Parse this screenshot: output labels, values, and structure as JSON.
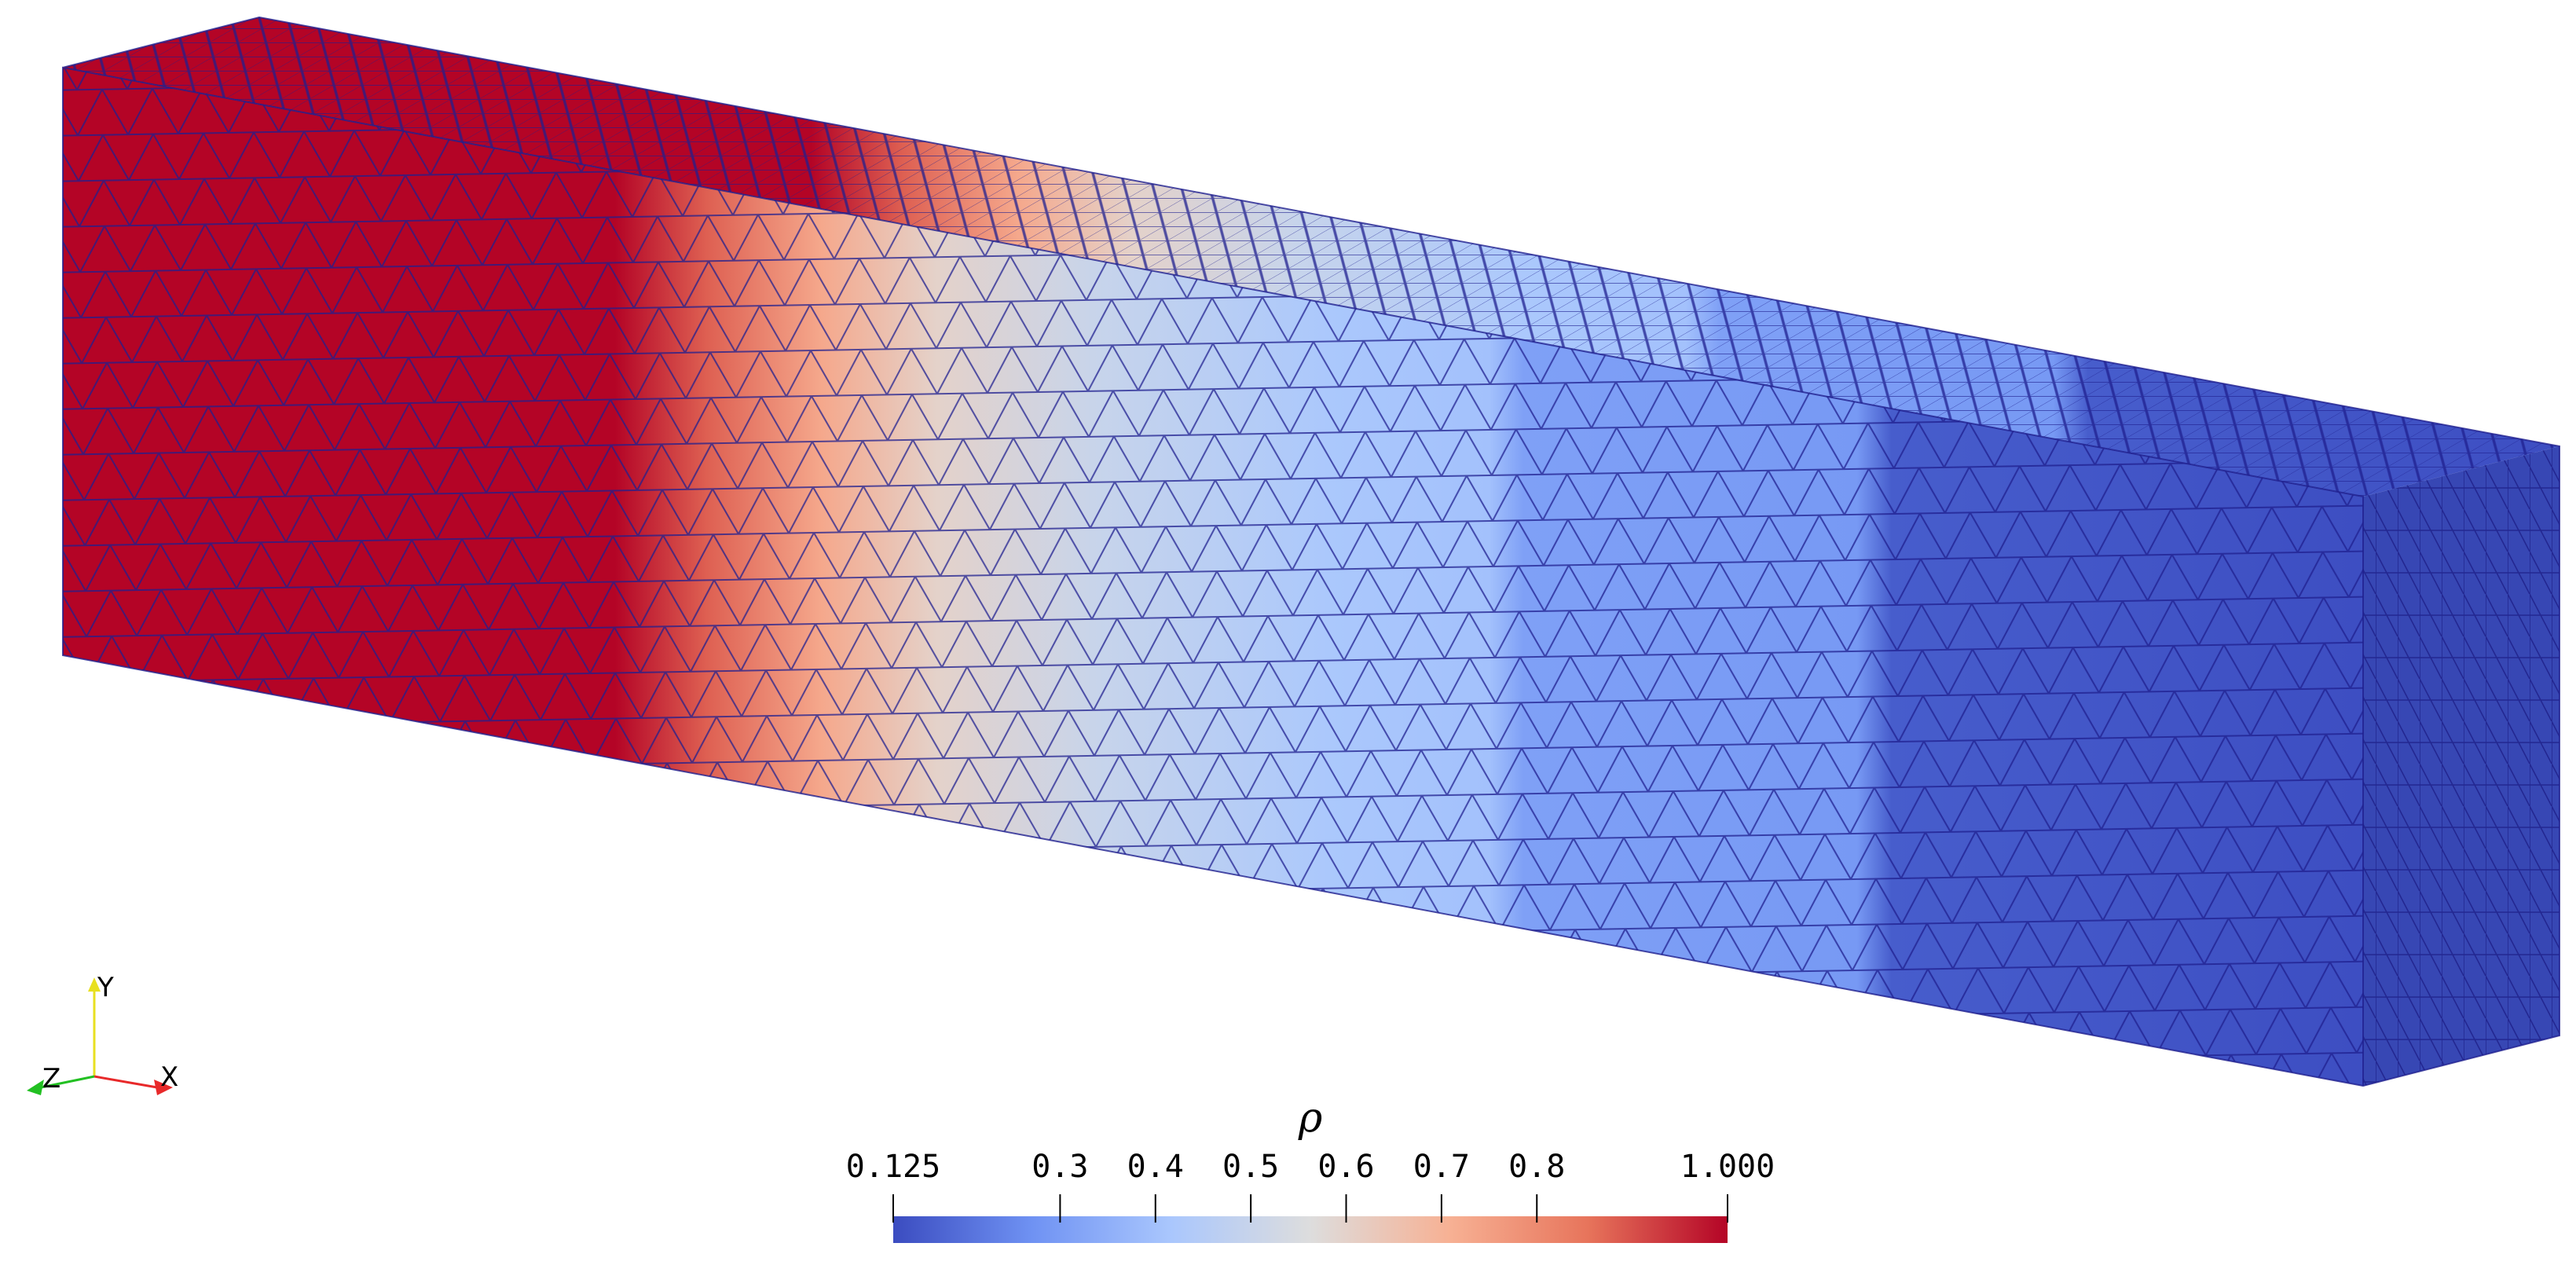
{
  "colorbar": {
    "title": "ρ",
    "ticks": [
      {
        "value": 0.125,
        "label": "0.125"
      },
      {
        "value": 0.3,
        "label": "0.3"
      },
      {
        "value": 0.4,
        "label": "0.4"
      },
      {
        "value": 0.5,
        "label": "0.5"
      },
      {
        "value": 0.6,
        "label": "0.6"
      },
      {
        "value": 0.7,
        "label": "0.7"
      },
      {
        "value": 0.8,
        "label": "0.8"
      },
      {
        "value": 1.0,
        "label": "1.000"
      }
    ],
    "range": [
      0.125,
      1.0
    ],
    "colormap": [
      "#3b4cc0",
      "#6f92f3",
      "#aac7fd",
      "#dddddd",
      "#f7b194",
      "#e7745b",
      "#b40426"
    ]
  },
  "beam": {
    "mesh_line_color": "#1f1f8f",
    "density_profile": [
      {
        "position": 0.0,
        "value": 1.0
      },
      {
        "position": 0.24,
        "value": 1.0
      },
      {
        "position": 0.28,
        "value": 0.88
      },
      {
        "position": 0.33,
        "value": 0.73
      },
      {
        "position": 0.38,
        "value": 0.6
      },
      {
        "position": 0.45,
        "value": 0.5
      },
      {
        "position": 0.55,
        "value": 0.42
      },
      {
        "position": 0.62,
        "value": 0.4
      },
      {
        "position": 0.635,
        "value": 0.31
      },
      {
        "position": 0.78,
        "value": 0.29
      },
      {
        "position": 0.795,
        "value": 0.16
      },
      {
        "position": 1.0,
        "value": 0.13
      }
    ]
  },
  "orientation_axes": {
    "x_label": "X",
    "y_label": "Y",
    "z_label": "Z",
    "x_color": "#e8292a",
    "y_color": "#e8e020",
    "z_color": "#22c022"
  }
}
